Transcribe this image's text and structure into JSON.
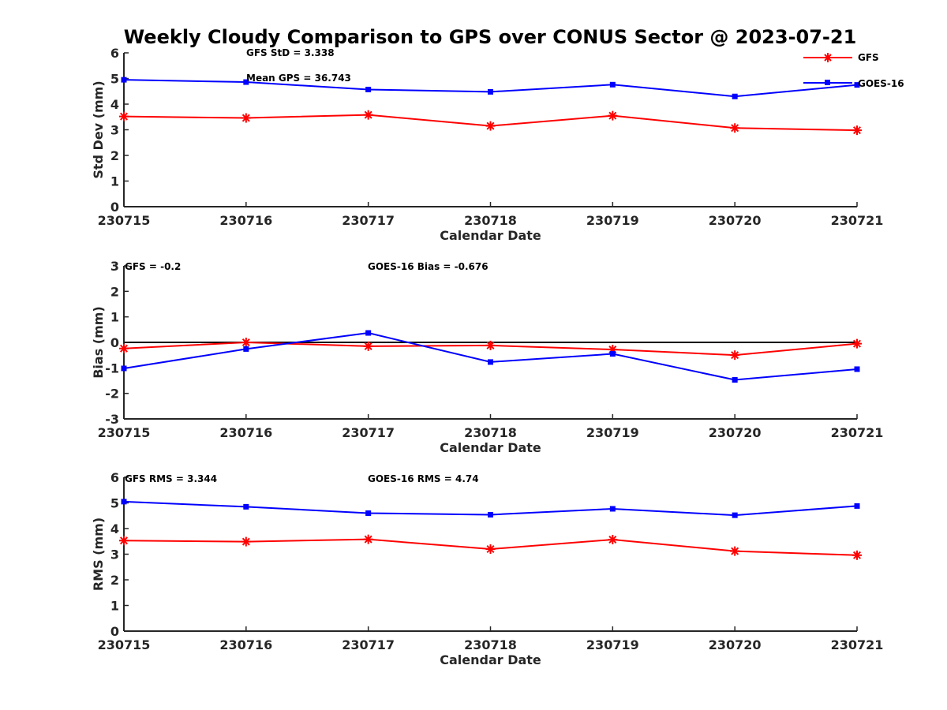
{
  "figure": {
    "title": "Weekly Cloudy Comparison to GPS over CONUS Sector @ 2023-07-21"
  },
  "colors": {
    "GFS": "#ff0000",
    "GOES-16": "#0000ff",
    "zero_line": "#000000",
    "axis": "#262626"
  },
  "chart_data": [
    {
      "type": "line",
      "id": "std",
      "title": "",
      "xlabel": "Calendar Date",
      "ylabel": "Std Dev (mm)",
      "categories": [
        "230715",
        "230716",
        "230717",
        "230718",
        "230719",
        "230720",
        "230721"
      ],
      "ylim": [
        0,
        6
      ],
      "yticks": [
        0,
        1,
        2,
        3,
        4,
        5,
        6
      ],
      "zero_line": false,
      "series": [
        {
          "name": "GFS",
          "marker": "asterisk",
          "values": [
            3.52,
            3.46,
            3.58,
            3.15,
            3.55,
            3.07,
            2.98
          ]
        },
        {
          "name": "GOES-16",
          "marker": "square",
          "values": [
            4.95,
            4.86,
            4.57,
            4.48,
            4.76,
            4.3,
            4.75
          ]
        }
      ],
      "annotations": [
        "GFS StD = 3.338",
        "Mean GPS = 36.743"
      ],
      "legend": {
        "placement": "top-right",
        "entries": [
          "GFS",
          "GOES-16"
        ]
      }
    },
    {
      "type": "line",
      "id": "bias",
      "title": "",
      "xlabel": "Calendar Date",
      "ylabel": "Bias (mm)",
      "categories": [
        "230715",
        "230716",
        "230717",
        "230718",
        "230719",
        "230720",
        "230721"
      ],
      "ylim": [
        -3,
        3
      ],
      "yticks": [
        -3,
        -2,
        -1,
        0,
        1,
        2,
        3
      ],
      "zero_line": true,
      "series": [
        {
          "name": "GFS",
          "marker": "asterisk",
          "values": [
            -0.24,
            0.0,
            -0.15,
            -0.12,
            -0.28,
            -0.5,
            -0.05
          ]
        },
        {
          "name": "GOES-16",
          "marker": "square",
          "values": [
            -1.02,
            -0.26,
            0.37,
            -0.77,
            -0.45,
            -1.47,
            -1.05
          ]
        }
      ],
      "annotations": [
        "GFS = -0.2",
        "GOES-16 Bias  = -0.676"
      ]
    },
    {
      "type": "line",
      "id": "rms",
      "title": "",
      "xlabel": "Calendar Date",
      "ylabel": "RMS (mm)",
      "categories": [
        "230715",
        "230716",
        "230717",
        "230718",
        "230719",
        "230720",
        "230721"
      ],
      "ylim": [
        0,
        6
      ],
      "yticks": [
        0,
        1,
        2,
        3,
        4,
        5,
        6
      ],
      "zero_line": false,
      "series": [
        {
          "name": "GFS",
          "marker": "asterisk",
          "values": [
            3.53,
            3.49,
            3.58,
            3.2,
            3.57,
            3.12,
            2.96
          ]
        },
        {
          "name": "GOES-16",
          "marker": "square",
          "values": [
            5.05,
            4.85,
            4.6,
            4.54,
            4.77,
            4.52,
            4.88
          ]
        }
      ],
      "annotations": [
        "GFS RMS = 3.344",
        "GOES-16 RMS = 4.74"
      ]
    }
  ]
}
